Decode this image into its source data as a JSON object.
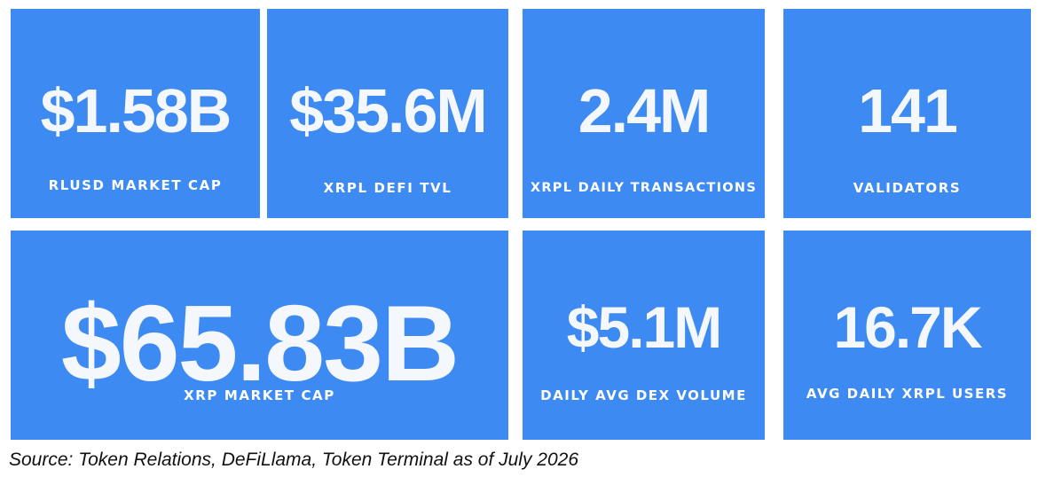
{
  "accent_color": "#3d8af2",
  "stats": {
    "rlusd_market_cap": {
      "value": "$1.58B",
      "label": "RLUSD MARKET CAP"
    },
    "xrpl_defi_tvl": {
      "value": "$35.6M",
      "label": "XRPL DEFI TVL"
    },
    "xrpl_daily_transactions": {
      "value": "2.4M",
      "label": "XRPL DAILY TRANSACTIONS"
    },
    "validators": {
      "value": "141",
      "label": "VALIDATORS"
    },
    "xrp_market_cap": {
      "value": "$65.83B",
      "label": "XRP MARKET CAP"
    },
    "daily_avg_dex_volume": {
      "value": "$5.1M",
      "label": "DAILY AVG DEX VOLUME"
    },
    "avg_daily_xrpl_users": {
      "value": "16.7K",
      "label": "AVG DAILY XRPL USERS"
    }
  },
  "source": "Source: Token Relations, DeFiLlama, Token Terminal as of July 2026"
}
